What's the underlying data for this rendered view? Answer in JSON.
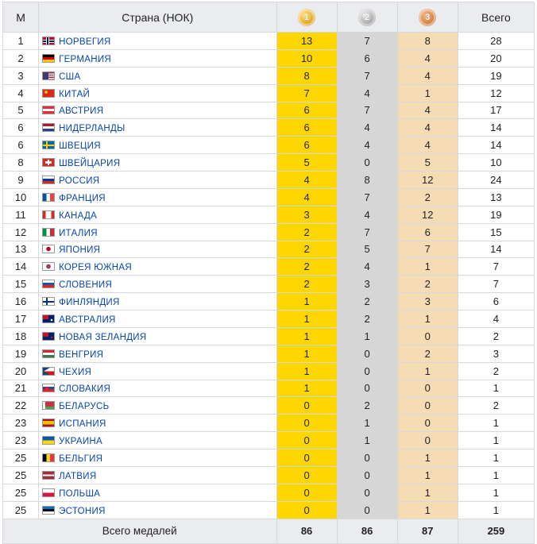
{
  "header": {
    "rank": "М",
    "country": "Страна (НОК)",
    "gold_icon": {
      "icon": "gold-medal-icon",
      "label": "1",
      "color": "#e2a61c"
    },
    "silver_icon": {
      "icon": "silver-medal-icon",
      "label": "2",
      "color": "#a5a5a5"
    },
    "bronze_icon": {
      "icon": "bronze-medal-icon",
      "label": "3",
      "color": "#d57d3c"
    },
    "total": "Всего"
  },
  "rows": [
    {
      "rank": "1",
      "country": "НОРВЕГИЯ",
      "flag": "norway-flag",
      "flag_bg": "linear-gradient(90deg,transparent 4px,#fff 4px,#fff 5px,#00205b 5px,#00205b 7px,#fff 7px,#fff 8px,transparent 8px),linear-gradient(#ba0c2f 3px,#fff 3px,#fff 4px,#00205b 4px,#00205b 6px,#fff 6px,#fff 7px,#ba0c2f 7px)",
      "gold": "13",
      "silver": "7",
      "bronze": "8",
      "total": "28"
    },
    {
      "rank": "2",
      "country": "ГЕРМАНИЯ",
      "flag": "germany-flag",
      "flag_bg": "linear-gradient(#000 33%,#dd0000 33%,#dd0000 66%,#ffce00 66%)",
      "gold": "10",
      "silver": "6",
      "bronze": "4",
      "total": "20"
    },
    {
      "rank": "3",
      "country": "США",
      "flag": "usa-flag",
      "flag_bg": "linear-gradient(90deg,#3c3b6e 7px,transparent 7px),repeating-linear-gradient(#b22234 0 1.4px,#fff 1.4px 2.8px)",
      "gold": "8",
      "silver": "7",
      "bronze": "4",
      "total": "19"
    },
    {
      "rank": "4",
      "country": "КИТАЙ",
      "flag": "china-flag",
      "flag_bg": "radial-gradient(circle at 4px 3px,#ffde00 1.5px,transparent 2px),#de2910",
      "gold": "7",
      "silver": "4",
      "bronze": "1",
      "total": "12"
    },
    {
      "rank": "5",
      "country": "АВСТРИЯ",
      "flag": "austria-flag",
      "flag_bg": "linear-gradient(#ed2939 33%,#fff 33%,#fff 66%,#ed2939 66%)",
      "gold": "6",
      "silver": "7",
      "bronze": "4",
      "total": "17"
    },
    {
      "rank": "6",
      "country": "НИДЕРЛАНДЫ",
      "flag": "netherlands-flag",
      "flag_bg": "linear-gradient(#ae1c28 33%,#fff 33%,#fff 66%,#21468b 66%)",
      "gold": "6",
      "silver": "4",
      "bronze": "4",
      "total": "14"
    },
    {
      "rank": "6",
      "country": "ШВЕЦИЯ",
      "flag": "sweden-flag",
      "flag_bg": "linear-gradient(90deg,transparent 4px,#fecc00 4px,#fecc00 6px,transparent 6px),linear-gradient(#006aa7 4px,#fecc00 4px,#fecc00 6px,#006aa7 6px)",
      "gold": "6",
      "silver": "4",
      "bronze": "4",
      "total": "14"
    },
    {
      "rank": "8",
      "country": "ШВЕЙЦАРИЯ",
      "flag": "switzerland-flag",
      "flag_bg": "linear-gradient(90deg,transparent 6px,#fff 6px,#fff 8px,transparent 8px) center/100% 7px no-repeat,linear-gradient(transparent 3px,#fff 3px,#fff 6px,transparent 6px) center/8px 100% no-repeat,#d52b1e",
      "gold": "5",
      "silver": "0",
      "bronze": "5",
      "total": "10"
    },
    {
      "rank": "9",
      "country": "РОССИЯ",
      "flag": "russia-flag",
      "flag_bg": "linear-gradient(#fff 33%,#0039a6 33%,#0039a6 66%,#d52b1e 66%)",
      "gold": "4",
      "silver": "8",
      "bronze": "12",
      "total": "24"
    },
    {
      "rank": "10",
      "country": "ФРАНЦИЯ",
      "flag": "france-flag",
      "flag_bg": "linear-gradient(90deg,#0055a4 33%,#fff 33%,#fff 66%,#ef4135 66%)",
      "gold": "4",
      "silver": "7",
      "bronze": "2",
      "total": "13"
    },
    {
      "rank": "11",
      "country": "КАНАДА",
      "flag": "canada-flag",
      "flag_bg": "linear-gradient(90deg,#d52b1e 25%,#fff 25%,#fff 75%,#d52b1e 75%)",
      "gold": "3",
      "silver": "4",
      "bronze": "12",
      "total": "19"
    },
    {
      "rank": "12",
      "country": "ИТАЛИЯ",
      "flag": "italy-flag",
      "flag_bg": "linear-gradient(90deg,#009246 33%,#fff 33%,#fff 66%,#ce2b37 66%)",
      "gold": "2",
      "silver": "7",
      "bronze": "6",
      "total": "15"
    },
    {
      "rank": "13",
      "country": "ЯПОНИЯ",
      "flag": "japan-flag",
      "flag_bg": "radial-gradient(circle,#bc002d 2.5px,#fff 3px)",
      "gold": "2",
      "silver": "5",
      "bronze": "7",
      "total": "14"
    },
    {
      "rank": "14",
      "country": "КОРЕЯ ЮЖНАЯ",
      "flag": "south-korea-flag",
      "flag_bg": "radial-gradient(circle,#cd2e3a 2px,#0047a0 2.5px,#fff 3px)",
      "gold": "2",
      "silver": "4",
      "bronze": "1",
      "total": "7"
    },
    {
      "rank": "15",
      "country": "СЛОВЕНИЯ",
      "flag": "slovenia-flag",
      "flag_bg": "linear-gradient(#fff 33%,#005da4 33%,#005da4 66%,#ed1c24 66%)",
      "gold": "2",
      "silver": "3",
      "bronze": "2",
      "total": "7"
    },
    {
      "rank": "16",
      "country": "ФИНЛЯНДИЯ",
      "flag": "finland-flag",
      "flag_bg": "linear-gradient(90deg,transparent 4px,#003580 4px,#003580 6px,transparent 6px),linear-gradient(#fff 4px,#003580 4px,#003580 6px,#fff 6px)",
      "gold": "1",
      "silver": "2",
      "bronze": "3",
      "total": "6"
    },
    {
      "rank": "17",
      "country": "АВСТРАЛИЯ",
      "flag": "australia-flag",
      "flag_bg": "radial-gradient(circle at 11px 6px,#fff 1px,transparent 1.5px),linear-gradient(90deg,#c8102e 7px,transparent 7px) 0 0/100% 5px no-repeat,#012169",
      "gold": "1",
      "silver": "2",
      "bronze": "1",
      "total": "4"
    },
    {
      "rank": "18",
      "country": "НОВАЯ ЗЕЛАНДИЯ",
      "flag": "new-zealand-flag",
      "flag_bg": "radial-gradient(circle at 11px 6px,#c8102e 1px,transparent 1.5px),linear-gradient(90deg,#c8102e 7px,transparent 7px) 0 0/100% 5px no-repeat,#012169",
      "gold": "1",
      "silver": "1",
      "bronze": "0",
      "total": "2"
    },
    {
      "rank": "19",
      "country": "ВЕНГРИЯ",
      "flag": "hungary-flag",
      "flag_bg": "linear-gradient(#ce2939 33%,#fff 33%,#fff 66%,#477050 66%)",
      "gold": "1",
      "silver": "0",
      "bronze": "2",
      "total": "3"
    },
    {
      "rank": "20",
      "country": "ЧЕХИЯ",
      "flag": "czech-flag",
      "flag_bg": "linear-gradient(150deg,#11457e 30%,transparent 30%),linear-gradient(30deg,#11457e 30%,transparent 30%),linear-gradient(#fff 50%,#d7141a 50%)",
      "gold": "1",
      "silver": "0",
      "bronze": "1",
      "total": "2"
    },
    {
      "rank": "21",
      "country": "СЛОВАКИЯ",
      "flag": "slovakia-flag",
      "flag_bg": "radial-gradient(circle at 5px 5px,#ee1c25 2px,transparent 2.5px),linear-gradient(#fff 33%,#0b4ea2 33%,#0b4ea2 66%,#ee1c25 66%)",
      "gold": "1",
      "silver": "0",
      "bronze": "0",
      "total": "1"
    },
    {
      "rank": "22",
      "country": "БЕЛАРУСЬ",
      "flag": "belarus-flag",
      "flag_bg": "linear-gradient(90deg,#fff 3px,transparent 3px),linear-gradient(#c8313e 66%,#4aa657 66%)",
      "gold": "0",
      "silver": "2",
      "bronze": "0",
      "total": "2"
    },
    {
      "rank": "23",
      "country": "ИСПАНИЯ",
      "flag": "spain-flag",
      "flag_bg": "linear-gradient(#aa151b 25%,#f1bf00 25%,#f1bf00 75%,#aa151b 75%)",
      "gold": "0",
      "silver": "1",
      "bronze": "0",
      "total": "1"
    },
    {
      "rank": "23",
      "country": "УКРАИНА",
      "flag": "ukraine-flag",
      "flag_bg": "linear-gradient(#0057b7 50%,#ffd700 50%)",
      "gold": "0",
      "silver": "1",
      "bronze": "0",
      "total": "1"
    },
    {
      "rank": "25",
      "country": "БЕЛЬГИЯ",
      "flag": "belgium-flag",
      "flag_bg": "linear-gradient(90deg,#000 33%,#fdda24 33%,#fdda24 66%,#ef3340 66%)",
      "gold": "0",
      "silver": "0",
      "bronze": "1",
      "total": "1"
    },
    {
      "rank": "25",
      "country": "ЛАТВИЯ",
      "flag": "latvia-flag",
      "flag_bg": "linear-gradient(#9e3039 40%,#fff 40%,#fff 60%,#9e3039 60%)",
      "gold": "0",
      "silver": "0",
      "bronze": "1",
      "total": "1"
    },
    {
      "rank": "25",
      "country": "ПОЛЬША",
      "flag": "poland-flag",
      "flag_bg": "linear-gradient(#fff 50%,#dc143c 50%)",
      "gold": "0",
      "silver": "0",
      "bronze": "1",
      "total": "1"
    },
    {
      "rank": "25",
      "country": "ЭСТОНИЯ",
      "flag": "estonia-flag",
      "flag_bg": "linear-gradient(#0072ce 33%,#000 33%,#000 66%,#fff 66%)",
      "gold": "0",
      "silver": "0",
      "bronze": "1",
      "total": "1"
    }
  ],
  "footer": {
    "label": "Всего медалей",
    "gold": "86",
    "silver": "86",
    "bronze": "87",
    "total": "259"
  }
}
